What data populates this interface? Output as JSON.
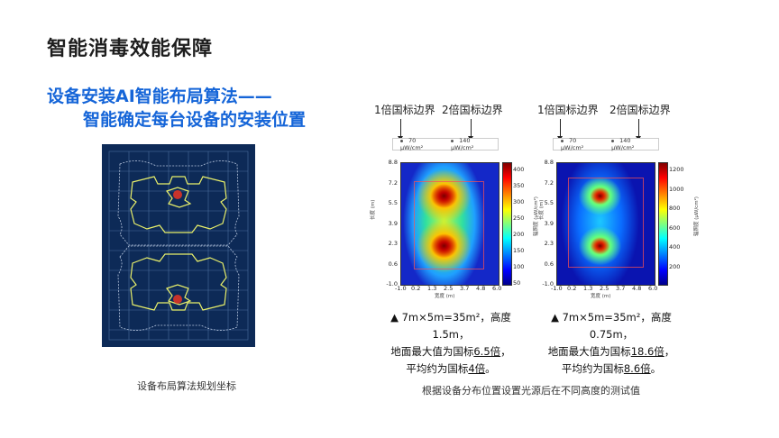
{
  "page": {
    "title": "智能消毒效能保障",
    "subtitle_line1": "设备安装AI智能布局算法——",
    "subtitle_line2": "智能确定每台设备的安装位置"
  },
  "left_panel": {
    "caption": "设备布局算法规划坐标"
  },
  "right_panel": {
    "caption": "根据设备分布位置设置光源后在不同高度的测试值"
  },
  "heatmap1": {
    "label_1x": "1倍国标边界",
    "label_2x": "2倍国标边界",
    "legend_a": "70 μW/cm²",
    "legend_b": "140 μW/cm²",
    "y_ticks": [
      "8.8",
      "7.2",
      "5.5",
      "3.9",
      "2.3",
      "0.6",
      "-1.0"
    ],
    "x_ticks": [
      "-1.0",
      "0.2",
      "1.3",
      "2.5",
      "3.7",
      "4.8",
      "6.0"
    ],
    "cbar_ticks": [
      "400",
      "350",
      "300",
      "250",
      "200",
      "150",
      "100",
      "50"
    ],
    "result_line1": "▲ 7m×5m=35m²，高度1.5m，",
    "result_line2_pre": "地面最大值为国标",
    "result_line2_val": "6.5倍",
    "result_line2_post": "，",
    "result_line3_pre": "平均约为国标",
    "result_line3_val": "4倍",
    "result_line3_post": "。"
  },
  "heatmap2": {
    "label_1x": "1倍国标边界",
    "label_2x": "2倍国标边界",
    "legend_a": "70 μW/cm²",
    "legend_b": "140 μW/cm²",
    "y_ticks": [
      "8.8",
      "7.2",
      "5.5",
      "3.9",
      "2.3",
      "0.6",
      "-1.0"
    ],
    "x_ticks": [
      "-1.0",
      "0.2",
      "1.3",
      "2.5",
      "3.7",
      "4.8",
      "6.0"
    ],
    "cbar_ticks": [
      "1200",
      "1000",
      "800",
      "600",
      "400",
      "200"
    ],
    "result_line1": "▲ 7m×5m=35m²，高度0.75m，",
    "result_line2_pre": "地面最大值为国标",
    "result_line2_val": "18.6倍",
    "result_line2_post": "，",
    "result_line3_pre": "平均约为国标",
    "result_line3_val": "8.6倍",
    "result_line3_post": "。"
  }
}
